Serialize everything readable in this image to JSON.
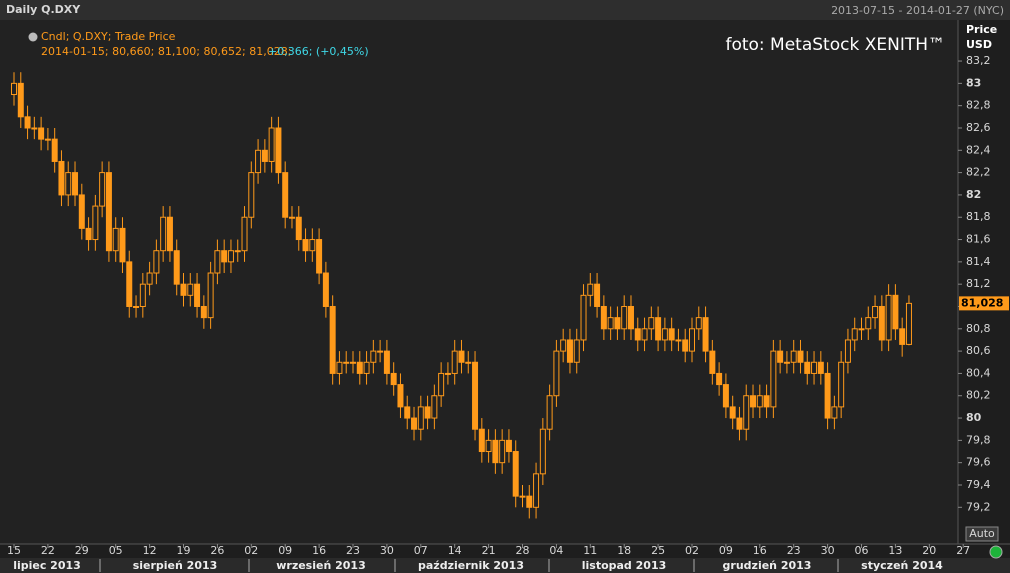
{
  "chart_data": {
    "type": "candlestick",
    "title": "Daily Q.DXY",
    "date_range": "2013-07-15 - 2014-01-27 (NYC)",
    "legend": "Cndl; Q.DXY; Trade Price",
    "info_values": "2014-01-15; 80,660; 81,100; 80,652; 81,028;",
    "info_change": "+0,366; (+0,45%)",
    "watermark": "foto: MetaStock XENITH™",
    "y_label": "Price",
    "y_unit": "USD",
    "auto_label": "Auto",
    "color": "#ff9a1a",
    "change_color": "#3fd7e6",
    "last_price": {
      "value": 81.028,
      "label": "81,028"
    },
    "open": [
      82.9,
      83.0,
      82.7,
      82.6,
      82.6,
      82.5,
      82.5,
      82.3,
      82.0,
      82.2,
      82.0,
      81.7,
      81.6,
      81.9,
      82.2,
      81.5,
      81.7,
      81.4,
      81.0,
      81.0,
      81.2,
      81.3,
      81.5,
      81.8,
      81.5,
      81.2,
      81.1,
      81.2,
      81.0,
      80.9,
      81.3,
      81.5,
      81.4,
      81.5,
      81.5,
      81.8,
      82.2,
      82.4,
      82.3,
      82.6,
      82.2,
      81.8,
      81.8,
      81.6,
      81.5,
      81.6,
      81.3,
      81.0,
      80.4,
      80.5,
      80.5,
      80.5,
      80.4,
      80.5,
      80.6,
      80.6,
      80.4,
      80.3,
      80.1,
      80.0,
      79.9,
      80.1,
      80.0,
      80.2,
      80.4,
      80.4,
      80.6,
      80.5,
      80.5,
      79.9,
      79.7,
      79.8,
      79.6,
      79.8,
      79.7,
      79.3,
      79.3,
      79.2,
      79.5,
      79.9,
      80.2,
      80.6,
      80.7,
      80.5,
      80.7,
      81.1,
      81.2,
      81.0,
      80.8,
      80.9,
      80.8,
      81.0,
      80.8,
      80.7,
      80.8,
      80.9,
      80.7,
      80.8,
      80.7,
      80.7,
      80.6,
      80.8,
      80.9,
      80.6,
      80.4,
      80.3,
      80.1,
      80.0,
      79.9,
      80.2,
      80.1,
      80.2,
      80.1,
      80.6,
      80.5,
      80.5,
      80.6,
      80.5,
      80.4,
      80.5,
      80.4,
      80.0,
      80.1,
      80.5,
      80.7,
      80.8,
      80.8,
      80.9,
      81.0,
      80.7,
      81.1,
      80.8,
      80.66
    ],
    "high": [
      83.1,
      83.1,
      82.8,
      82.7,
      82.7,
      82.6,
      82.6,
      82.4,
      82.3,
      82.3,
      82.1,
      81.8,
      82.0,
      82.3,
      82.3,
      81.8,
      81.8,
      81.5,
      81.1,
      81.3,
      81.4,
      81.6,
      81.9,
      81.9,
      81.6,
      81.3,
      81.3,
      81.3,
      81.1,
      81.4,
      81.6,
      81.6,
      81.6,
      81.6,
      81.9,
      82.3,
      82.5,
      82.5,
      82.7,
      82.7,
      82.3,
      81.9,
      81.9,
      81.7,
      81.7,
      81.7,
      81.4,
      81.1,
      80.6,
      80.6,
      80.6,
      80.6,
      80.6,
      80.7,
      80.7,
      80.7,
      80.5,
      80.4,
      80.2,
      80.1,
      80.2,
      80.2,
      80.3,
      80.5,
      80.5,
      80.7,
      80.7,
      80.6,
      80.6,
      80.0,
      79.9,
      79.9,
      79.9,
      79.9,
      79.8,
      79.4,
      79.4,
      79.6,
      80.0,
      80.3,
      80.7,
      80.8,
      80.8,
      80.8,
      81.2,
      81.3,
      81.3,
      81.1,
      81.0,
      81.0,
      81.1,
      81.1,
      80.9,
      80.9,
      81.0,
      81.0,
      80.9,
      80.9,
      80.8,
      80.8,
      80.9,
      81.0,
      81.0,
      80.7,
      80.5,
      80.4,
      80.2,
      80.1,
      80.3,
      80.3,
      80.3,
      80.3,
      80.7,
      80.7,
      80.6,
      80.7,
      80.7,
      80.6,
      80.6,
      80.6,
      80.5,
      80.2,
      80.6,
      80.8,
      80.9,
      80.9,
      81.0,
      81.1,
      81.1,
      81.2,
      81.2,
      80.9,
      81.1
    ],
    "low": [
      82.8,
      82.6,
      82.5,
      82.5,
      82.4,
      82.4,
      82.2,
      81.9,
      81.9,
      81.9,
      81.6,
      81.5,
      81.5,
      81.8,
      81.4,
      81.4,
      81.3,
      80.9,
      80.9,
      80.9,
      81.1,
      81.2,
      81.4,
      81.4,
      81.1,
      81.0,
      81.0,
      80.9,
      80.8,
      80.8,
      81.2,
      81.3,
      81.3,
      81.4,
      81.4,
      81.7,
      82.1,
      82.2,
      82.2,
      82.1,
      81.7,
      81.7,
      81.5,
      81.4,
      81.4,
      81.2,
      80.9,
      80.3,
      80.3,
      80.4,
      80.4,
      80.3,
      80.3,
      80.4,
      80.5,
      80.3,
      80.2,
      80.0,
      79.9,
      79.8,
      79.8,
      79.9,
      79.9,
      80.1,
      80.3,
      80.3,
      80.4,
      80.4,
      79.8,
      79.6,
      79.6,
      79.5,
      79.5,
      79.6,
      79.2,
      79.2,
      79.1,
      79.1,
      79.4,
      79.8,
      80.1,
      80.5,
      80.4,
      80.4,
      80.6,
      81.0,
      80.9,
      80.7,
      80.7,
      80.7,
      80.7,
      80.7,
      80.6,
      80.6,
      80.7,
      80.6,
      80.6,
      80.6,
      80.6,
      80.5,
      80.5,
      80.7,
      80.5,
      80.3,
      80.2,
      80.0,
      79.9,
      79.8,
      79.8,
      80.0,
      80.0,
      80.0,
      80.0,
      80.4,
      80.4,
      80.4,
      80.4,
      80.3,
      80.3,
      80.3,
      79.9,
      79.9,
      80.0,
      80.4,
      80.6,
      80.7,
      80.7,
      80.8,
      80.6,
      80.6,
      80.7,
      80.55,
      80.652
    ],
    "close": [
      83.0,
      82.7,
      82.6,
      82.6,
      82.5,
      82.5,
      82.3,
      82.0,
      82.2,
      82.0,
      81.7,
      81.6,
      81.9,
      82.2,
      81.5,
      81.7,
      81.4,
      81.0,
      81.0,
      81.2,
      81.3,
      81.5,
      81.8,
      81.5,
      81.2,
      81.1,
      81.2,
      81.0,
      80.9,
      81.3,
      81.5,
      81.4,
      81.5,
      81.5,
      81.8,
      82.2,
      82.4,
      82.3,
      82.6,
      82.2,
      81.8,
      81.8,
      81.6,
      81.5,
      81.6,
      81.3,
      81.0,
      80.4,
      80.5,
      80.5,
      80.5,
      80.4,
      80.5,
      80.6,
      80.6,
      80.4,
      80.3,
      80.1,
      80.0,
      79.9,
      80.1,
      80.0,
      80.2,
      80.4,
      80.4,
      80.6,
      80.5,
      80.5,
      79.9,
      79.7,
      79.8,
      79.6,
      79.8,
      79.7,
      79.3,
      79.3,
      79.2,
      79.5,
      79.9,
      80.2,
      80.6,
      80.7,
      80.5,
      80.7,
      81.1,
      81.2,
      81.0,
      80.8,
      80.9,
      80.8,
      81.0,
      80.8,
      80.7,
      80.8,
      80.9,
      80.7,
      80.8,
      80.7,
      80.7,
      80.6,
      80.8,
      80.9,
      80.6,
      80.4,
      80.3,
      80.1,
      80.0,
      79.9,
      80.2,
      80.1,
      80.2,
      80.1,
      80.6,
      80.5,
      80.5,
      80.6,
      80.5,
      80.4,
      80.5,
      80.4,
      80.0,
      80.1,
      80.5,
      80.7,
      80.8,
      80.8,
      80.9,
      81.0,
      80.7,
      81.1,
      80.8,
      80.66,
      81.028
    ],
    "xtick_labels": [
      "15",
      "22",
      "29",
      "05",
      "12",
      "19",
      "26",
      "02",
      "09",
      "16",
      "23",
      "30",
      "07",
      "14",
      "21",
      "28",
      "04",
      "11",
      "18",
      "25",
      "02",
      "09",
      "16",
      "23",
      "30",
      "06",
      "13",
      "20",
      "27"
    ],
    "months": [
      "lipiec 2013",
      "sierpień 2013",
      "wrzesień 2013",
      "październik 2013",
      "listopad 2013",
      "grudzień 2013",
      "styczeń 2014"
    ],
    "ylim": [
      78.88,
      83.55
    ],
    "yticks": [
      {
        "value": 79.2,
        "label": "79,2"
      },
      {
        "value": 79.4,
        "label": "79,4"
      },
      {
        "value": 79.6,
        "label": "79,6"
      },
      {
        "value": 79.8,
        "label": "79,8"
      },
      80,
      {
        "value": 80.2,
        "label": "80,2"
      },
      {
        "value": 80.4,
        "label": "80,4"
      },
      {
        "value": 80.6,
        "label": "80,6"
      },
      {
        "value": 80.8,
        "label": "80,8"
      },
      {
        "value": 81,
        "label": "81"
      },
      {
        "value": 81.2,
        "label": "81,2"
      },
      {
        "value": 81.4,
        "label": "81,4"
      },
      {
        "value": 81.6,
        "label": "81,6"
      },
      {
        "value": 81.8,
        "label": "81,8"
      },
      82,
      {
        "value": 82.2,
        "label": "82,2"
      },
      {
        "value": 82.4,
        "label": "82,4"
      },
      {
        "value": 82.6,
        "label": "82,6"
      },
      {
        "value": 82.8,
        "label": "82,8"
      },
      83,
      {
        "value": 83.2,
        "label": "83,2"
      }
    ]
  }
}
